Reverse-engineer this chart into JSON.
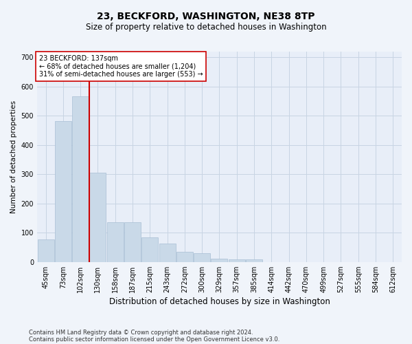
{
  "title": "23, BECKFORD, WASHINGTON, NE38 8TP",
  "subtitle": "Size of property relative to detached houses in Washington",
  "xlabel": "Distribution of detached houses by size in Washington",
  "ylabel": "Number of detached properties",
  "footer_line1": "Contains HM Land Registry data © Crown copyright and database right 2024.",
  "footer_line2": "Contains public sector information licensed under the Open Government Licence v3.0.",
  "annotation_line1": "23 BECKFORD: 137sqm",
  "annotation_line2": "← 68% of detached houses are smaller (1,204)",
  "annotation_line3": "31% of semi-detached houses are larger (553) →",
  "bar_color": "#c9d9e8",
  "bar_edge_color": "#a8bfd4",
  "grid_color": "#c8d4e3",
  "vline_color": "#cc0000",
  "vline_x_index": 3,
  "categories": [
    "45sqm",
    "73sqm",
    "102sqm",
    "130sqm",
    "158sqm",
    "187sqm",
    "215sqm",
    "243sqm",
    "272sqm",
    "300sqm",
    "329sqm",
    "357sqm",
    "385sqm",
    "414sqm",
    "442sqm",
    "470sqm",
    "499sqm",
    "527sqm",
    "555sqm",
    "584sqm",
    "612sqm"
  ],
  "values": [
    78,
    483,
    567,
    305,
    135,
    135,
    85,
    63,
    35,
    30,
    12,
    8,
    8,
    0,
    0,
    0,
    0,
    0,
    0,
    0,
    0
  ],
  "ylim": [
    0,
    720
  ],
  "yticks": [
    0,
    100,
    200,
    300,
    400,
    500,
    600,
    700
  ],
  "background_color": "#f0f4fa",
  "plot_background_color": "#e8eef8",
  "title_fontsize": 10,
  "subtitle_fontsize": 8.5,
  "ylabel_fontsize": 7.5,
  "xlabel_fontsize": 8.5,
  "tick_fontsize": 7,
  "annotation_fontsize": 7,
  "footer_fontsize": 6
}
